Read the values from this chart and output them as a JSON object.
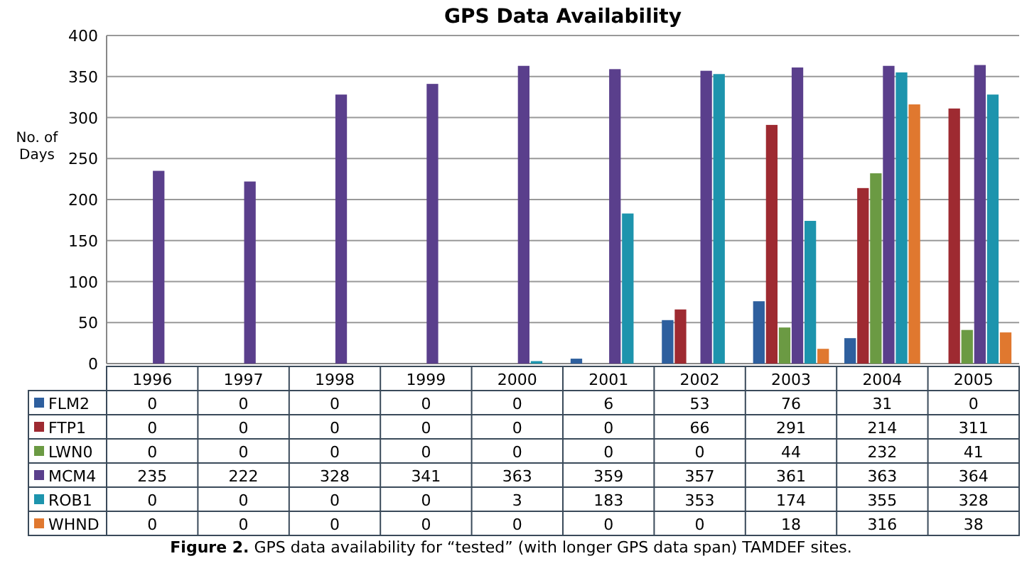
{
  "chart_data": {
    "type": "bar",
    "title": "GPS Data Availability",
    "ylabel": "No. of Days",
    "categories": [
      "1996",
      "1997",
      "1998",
      "1999",
      "2000",
      "2001",
      "2002",
      "2003",
      "2004",
      "2005"
    ],
    "series": [
      {
        "name": "FLM2",
        "color": "#2e5f9e",
        "values": [
          0,
          0,
          0,
          0,
          0,
          6,
          53,
          76,
          31,
          0
        ]
      },
      {
        "name": "FTP1",
        "color": "#9e2a31",
        "values": [
          0,
          0,
          0,
          0,
          0,
          0,
          66,
          291,
          214,
          311
        ]
      },
      {
        "name": "LWN0",
        "color": "#6b9a43",
        "values": [
          0,
          0,
          0,
          0,
          0,
          0,
          0,
          44,
          232,
          41
        ]
      },
      {
        "name": "MCM4",
        "color": "#5a3f8c",
        "values": [
          235,
          222,
          328,
          341,
          363,
          359,
          357,
          361,
          363,
          364
        ]
      },
      {
        "name": "ROB1",
        "color": "#1d94ad",
        "values": [
          0,
          0,
          0,
          0,
          3,
          183,
          353,
          174,
          355,
          328
        ]
      },
      {
        "name": "WHND",
        "color": "#e0782f",
        "values": [
          0,
          0,
          0,
          0,
          0,
          0,
          0,
          18,
          316,
          38
        ]
      }
    ],
    "ylim": [
      0,
      400
    ],
    "yticks": [
      0,
      50,
      100,
      150,
      200,
      250,
      300,
      350,
      400
    ],
    "grid": "y",
    "legend": "bottom",
    "data_labels": true,
    "annotations": [
      "Figure 2. GPS data availability for “tested” (with longer GPS data span) TAMDEF sites."
    ]
  }
}
